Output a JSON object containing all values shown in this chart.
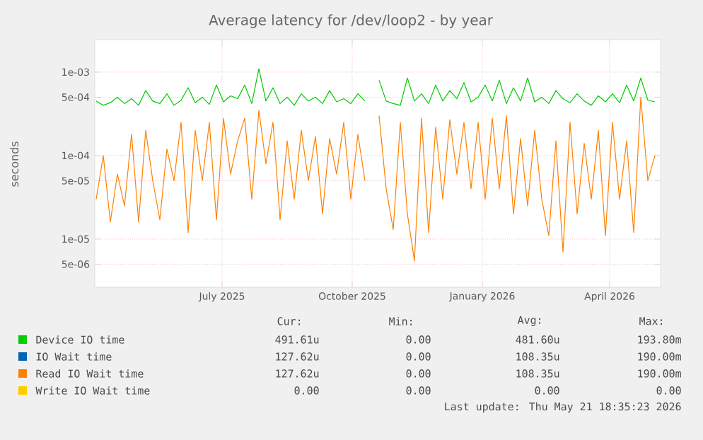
{
  "chart_data": {
    "type": "line",
    "title": "Average latency for /dev/loop2 - by year",
    "ylabel": "seconds",
    "log": "y",
    "grid": true,
    "legend": "bottom",
    "xlim": [
      "2025-04-02",
      "2026-05-07"
    ],
    "ylim": [
      2.65e-06,
      0.00245
    ],
    "xticks": [
      {
        "value": "2025-07-01",
        "label": "July 2025"
      },
      {
        "value": "2025-10-01",
        "label": "October 2025"
      },
      {
        "value": "2026-01-01",
        "label": "January 2026"
      },
      {
        "value": "2026-04-01",
        "label": "April 2026"
      }
    ],
    "yticks": [
      {
        "value": 5e-06,
        "label": "5e-06"
      },
      {
        "value": 1e-05,
        "label": "1e-05"
      },
      {
        "value": 5e-05,
        "label": "5e-05"
      },
      {
        "value": 0.0001,
        "label": "1e-04"
      },
      {
        "value": 0.0005,
        "label": "5e-04"
      },
      {
        "value": 0.001,
        "label": "1e-03"
      }
    ],
    "x": [
      "2025-04-03",
      "2025-04-08",
      "2025-04-13",
      "2025-04-18",
      "2025-04-23",
      "2025-04-28",
      "2025-05-03",
      "2025-05-08",
      "2025-05-13",
      "2025-05-18",
      "2025-05-23",
      "2025-05-28",
      "2025-06-02",
      "2025-06-07",
      "2025-06-12",
      "2025-06-17",
      "2025-06-22",
      "2025-06-27",
      "2025-07-02",
      "2025-07-07",
      "2025-07-12",
      "2025-07-17",
      "2025-07-22",
      "2025-07-27",
      "2025-08-01",
      "2025-08-06",
      "2025-08-11",
      "2025-08-16",
      "2025-08-21",
      "2025-08-26",
      "2025-08-31",
      "2025-09-05",
      "2025-09-10",
      "2025-09-15",
      "2025-09-20",
      "2025-09-25",
      "2025-09-30",
      "2025-10-05",
      "2025-10-10",
      "2025-10-15",
      "2025-10-20",
      "2025-10-25",
      "2025-10-30",
      "2025-11-04",
      "2025-11-09",
      "2025-11-14",
      "2025-11-19",
      "2025-11-24",
      "2025-11-29",
      "2025-12-04",
      "2025-12-09",
      "2025-12-14",
      "2025-12-19",
      "2025-12-24",
      "2025-12-29",
      "2026-01-03",
      "2026-01-08",
      "2026-01-13",
      "2026-01-18",
      "2026-01-23",
      "2026-01-28",
      "2026-02-02",
      "2026-02-07",
      "2026-02-12",
      "2026-02-17",
      "2026-02-22",
      "2026-02-27",
      "2026-03-04",
      "2026-03-09",
      "2026-03-14",
      "2026-03-19",
      "2026-03-24",
      "2026-03-29",
      "2026-04-03",
      "2026-04-08",
      "2026-04-13",
      "2026-04-18",
      "2026-04-23",
      "2026-04-28",
      "2026-05-03"
    ],
    "series": [
      {
        "name": "Device IO time",
        "color": "#00cc00",
        "values": [
          0.00045,
          0.0004,
          0.00043,
          0.0005,
          0.00042,
          0.00048,
          0.0004,
          0.0006,
          0.00045,
          0.00042,
          0.00055,
          0.0004,
          0.00046,
          0.00065,
          0.00043,
          0.0005,
          0.00041,
          0.0007,
          0.00044,
          0.00052,
          0.00048,
          0.0007,
          0.00042,
          0.0011,
          0.00045,
          0.00065,
          0.00042,
          0.0005,
          0.0004,
          0.00055,
          0.00045,
          0.0005,
          0.00042,
          0.0006,
          0.00044,
          0.00048,
          0.00042,
          0.00055,
          0.00045,
          null,
          0.0008,
          0.00045,
          0.00042,
          0.0004,
          0.00085,
          0.00045,
          0.00055,
          0.00042,
          0.0007,
          0.00045,
          0.0006,
          0.00048,
          0.00075,
          0.00044,
          0.0005,
          0.0007,
          0.00045,
          0.0008,
          0.00042,
          0.00065,
          0.00045,
          0.00085,
          0.00044,
          0.0005,
          0.00042,
          0.0006,
          0.00048,
          0.00043,
          0.00055,
          0.00045,
          0.0004,
          0.00052,
          0.00044,
          0.00055,
          0.00043,
          0.0007,
          0.00045,
          0.00085,
          0.00046,
          0.00044
        ]
      },
      {
        "name": "IO Wait time",
        "color": "#0066b3",
        "values": [
          null,
          null,
          null,
          null,
          null,
          null,
          null,
          null,
          null,
          null,
          null,
          null,
          null,
          null,
          null,
          null,
          null,
          null,
          null,
          null,
          null,
          null,
          null,
          null,
          null,
          null,
          null,
          null,
          null,
          null,
          null,
          null,
          null,
          null,
          null,
          null,
          null,
          null,
          null,
          null,
          null,
          null,
          null,
          null,
          null,
          null,
          null,
          null,
          null,
          null,
          null,
          null,
          null,
          null,
          null,
          null,
          null,
          null,
          null,
          null,
          null,
          null,
          null,
          null,
          null,
          null,
          null,
          null,
          null,
          null,
          null,
          null,
          null,
          null,
          null,
          null,
          null,
          null,
          null,
          null
        ]
      },
      {
        "name": "Read IO Wait time",
        "color": "#ff8000",
        "values": [
          3e-05,
          0.0001,
          1.6e-05,
          6e-05,
          2.5e-05,
          0.00018,
          1.6e-05,
          0.0002,
          5e-05,
          1.7e-05,
          0.00012,
          5e-05,
          0.00025,
          1.2e-05,
          0.0002,
          5e-05,
          0.00025,
          1.7e-05,
          0.00028,
          6e-05,
          0.00015,
          0.00028,
          3e-05,
          0.00035,
          8e-05,
          0.00025,
          1.7e-05,
          0.00015,
          3e-05,
          0.0002,
          5e-05,
          0.00017,
          2e-05,
          0.00016,
          6e-05,
          0.00025,
          3e-05,
          0.00018,
          5e-05,
          null,
          0.0003,
          4e-05,
          1.3e-05,
          0.00025,
          2e-05,
          5.5e-06,
          0.00028,
          1.2e-05,
          0.00022,
          3e-05,
          0.00027,
          6e-05,
          0.00025,
          4e-05,
          0.00025,
          3e-05,
          0.00028,
          4e-05,
          0.0003,
          2e-05,
          0.00016,
          2.5e-05,
          0.0002,
          3e-05,
          1.1e-05,
          0.00015,
          7e-06,
          0.00025,
          2e-05,
          0.00014,
          3e-05,
          0.0002,
          1.1e-05,
          0.00025,
          3e-05,
          0.00015,
          1.2e-05,
          0.0005,
          5e-05,
          0.0001
        ]
      },
      {
        "name": "Write IO Wait time",
        "color": "#ffcc00",
        "values": [
          null,
          null,
          null,
          null,
          null,
          null,
          null,
          null,
          null,
          null,
          null,
          null,
          null,
          null,
          null,
          null,
          null,
          null,
          null,
          null,
          null,
          null,
          null,
          null,
          null,
          null,
          null,
          null,
          null,
          null,
          null,
          null,
          null,
          null,
          null,
          null,
          null,
          null,
          null,
          null,
          null,
          null,
          null,
          null,
          null,
          null,
          null,
          null,
          null,
          null,
          null,
          null,
          null,
          null,
          null,
          null,
          null,
          null,
          null,
          null,
          null,
          null,
          null,
          null,
          null,
          null,
          null,
          null,
          null,
          null,
          null,
          null,
          null,
          null,
          null,
          null,
          null,
          null,
          null,
          null
        ]
      }
    ],
    "annotations": [
      "Cur:",
      "Min:",
      "Avg:",
      "Max:",
      "491.61u",
      "0.00",
      "481.60u",
      "193.80m",
      "127.62u",
      "0.00",
      "108.35u",
      "190.00m",
      "127.62u",
      "0.00",
      "108.35u",
      "190.00m",
      "0.00",
      "0.00",
      "0.00",
      "0.00",
      "Last update: Thu May 21 18:35:23 2026"
    ]
  }
}
